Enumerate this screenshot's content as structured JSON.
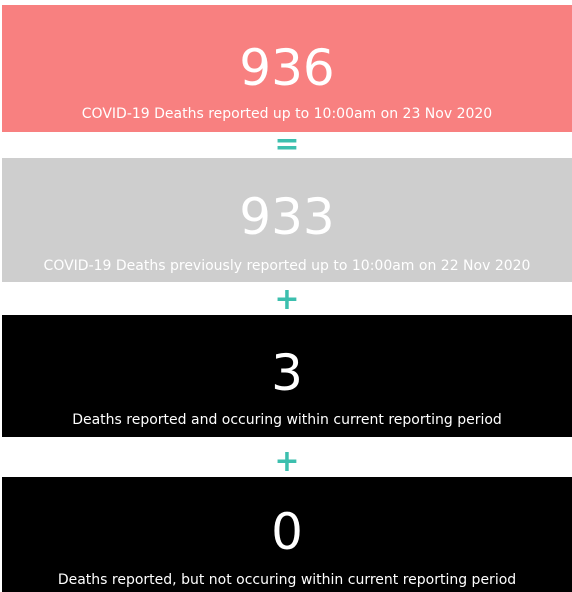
{
  "cards": [
    {
      "value": 936,
      "label": "COVID-19 Deaths reported up to 10:00am on 23 Nov 2020"
    },
    {
      "value": 933,
      "label": "COVID-19 Deaths previously reported up to 10:00am on 22 Nov 2020"
    },
    {
      "value": 3,
      "label": "Deaths reported and occuring within current reporting period"
    },
    {
      "value": 0,
      "label": "Deaths reported, but not occuring within current reporting period"
    }
  ],
  "operators": [
    "=",
    "+",
    "+"
  ]
}
